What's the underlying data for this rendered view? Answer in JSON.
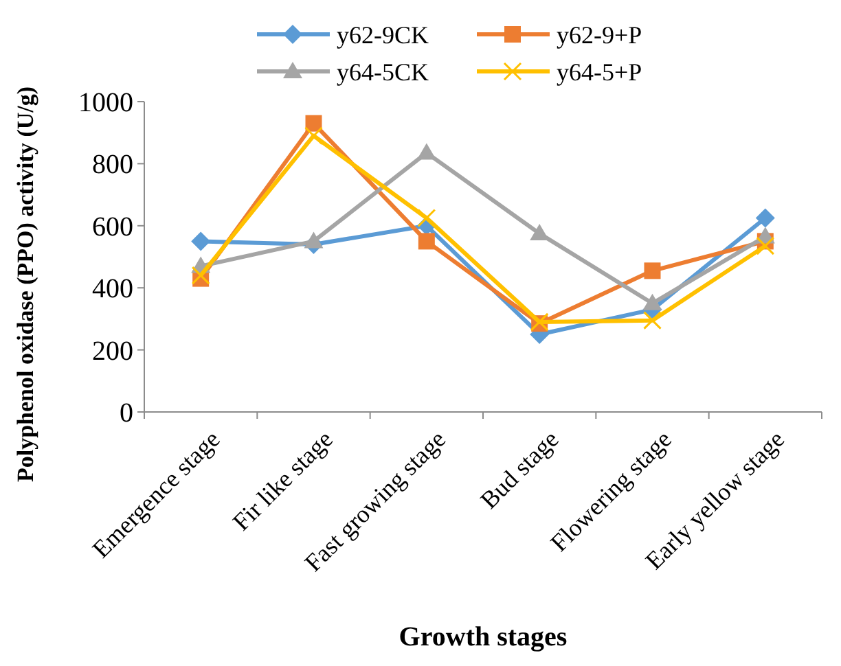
{
  "chart_data": {
    "type": "line",
    "xlabel": "Growth stages",
    "ylabel": "Polyphenol oxidase (PPO) activity (U/g)",
    "categories": [
      "Emergence stage",
      "Fir like stage",
      "Fast growing stage",
      "Bud stage",
      "Flowering stage",
      "Early yellow stage"
    ],
    "ylim": [
      0,
      1000
    ],
    "yticks": [
      0,
      200,
      400,
      600,
      800,
      1000
    ],
    "grid": false,
    "legend": "top",
    "series": [
      {
        "name": "y62-9CK",
        "color": "#5b9bd5",
        "marker": "diamond",
        "values": [
          550,
          540,
          600,
          250,
          330,
          625
        ]
      },
      {
        "name": "y62-9+P",
        "color": "#ed7d31",
        "marker": "square",
        "values": [
          430,
          930,
          550,
          285,
          455,
          550
        ]
      },
      {
        "name": "y64-5CK",
        "color": "#a5a5a5",
        "marker": "triangle",
        "values": [
          470,
          550,
          835,
          575,
          350,
          565
        ]
      },
      {
        "name": "y64-5+P",
        "color": "#ffc000",
        "marker": "cross",
        "values": [
          440,
          890,
          625,
          290,
          295,
          535
        ]
      }
    ]
  }
}
